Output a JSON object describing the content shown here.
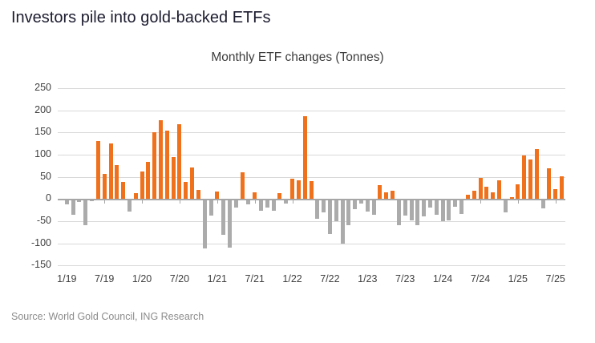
{
  "header": {
    "title": "Investors pile into gold-backed ETFs"
  },
  "source": {
    "label": "Source: World Gold Council, ING Research"
  },
  "chart_data": {
    "type": "bar",
    "title": "Monthly ETF changes (Tonnes)",
    "ylabel": "",
    "xlabel": "",
    "unit": "Tonnes",
    "ylim": [
      -150,
      250
    ],
    "grid": true,
    "y_axis_ticks": [
      250,
      200,
      150,
      100,
      50,
      0,
      -50,
      -100,
      -150
    ],
    "x_axis_tick_labels": [
      "1/19",
      "7/19",
      "1/20",
      "7/20",
      "1/21",
      "7/21",
      "1/22",
      "7/22",
      "1/23",
      "7/23",
      "1/24",
      "7/24",
      "1/25",
      "7/25"
    ],
    "positive_color": "#f0711c",
    "negative_color": "#ababab",
    "x": [
      "1/19",
      "2/19",
      "3/19",
      "4/19",
      "5/19",
      "6/19",
      "7/19",
      "8/19",
      "9/19",
      "10/19",
      "11/19",
      "12/19",
      "1/20",
      "2/20",
      "3/20",
      "4/20",
      "5/20",
      "6/20",
      "7/20",
      "8/20",
      "9/20",
      "10/20",
      "11/20",
      "12/20",
      "1/21",
      "2/21",
      "3/21",
      "4/21",
      "5/21",
      "6/21",
      "7/21",
      "8/21",
      "9/21",
      "10/21",
      "11/21",
      "12/21",
      "1/22",
      "2/22",
      "3/22",
      "4/22",
      "5/22",
      "6/22",
      "7/22",
      "8/22",
      "9/22",
      "10/22",
      "11/22",
      "12/22",
      "1/23",
      "2/23",
      "3/23",
      "4/23",
      "5/23",
      "6/23",
      "7/23",
      "8/23",
      "9/23",
      "10/23",
      "11/23",
      "12/23",
      "1/24",
      "2/24",
      "3/24",
      "4/24",
      "5/24",
      "6/24",
      "7/24",
      "8/24",
      "9/24",
      "10/24",
      "11/24",
      "12/24",
      "1/25",
      "2/25",
      "3/25",
      "4/25",
      "5/25",
      "6/25",
      "7/25",
      "8/25"
    ],
    "values": [
      -10,
      -33,
      -5,
      -57,
      -4,
      130,
      57,
      126,
      77,
      39,
      -27,
      14,
      62,
      84,
      151,
      178,
      154,
      94,
      168,
      38,
      71,
      20,
      -110,
      -35,
      16,
      -79,
      -108,
      -17,
      61,
      -10,
      15,
      -25,
      -18,
      -25,
      13,
      -8,
      45,
      42,
      186,
      40,
      -43,
      -28,
      -78,
      -49,
      -98,
      -58,
      -21,
      -9,
      -26,
      -34,
      32,
      15,
      19,
      -57,
      -35,
      -46,
      -58,
      -37,
      -17,
      -33,
      -49,
      -47,
      -16,
      -32,
      10,
      19,
      47,
      28,
      15,
      42,
      -28,
      4,
      33,
      98,
      89,
      113,
      -19,
      69,
      23,
      51
    ]
  },
  "colors": {
    "title_text": "#1c1c30",
    "chart_title_text": "#3d3d3d",
    "axis_text": "#404040",
    "gridline": "#d9d9d9",
    "zero_line": "#a6a6a6",
    "source_text": "#8c8c8c",
    "background": "#ffffff"
  }
}
